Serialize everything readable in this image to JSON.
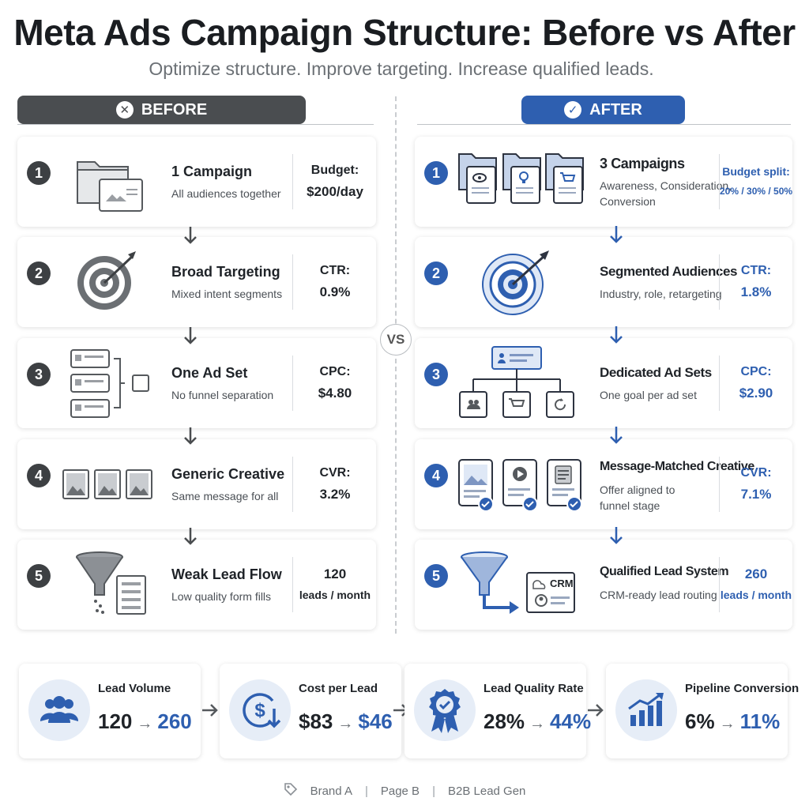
{
  "header": {
    "title": "Meta Ads Campaign Structure: Before vs After",
    "subtitle": "Optimize structure. Improve targeting. Increase qualified leads."
  },
  "before": {
    "label": "BEFORE",
    "cards": [
      {
        "number": "1",
        "title": "1 Campaign",
        "subtitle": [
          "All audiences together"
        ],
        "metric_label": "Budget:",
        "metric_value": "$200/day",
        "icon": "folder-icon"
      },
      {
        "number": "2",
        "title": "Broad Targeting",
        "subtitle": [
          "Mixed intent segments"
        ],
        "metric_label": "CTR:",
        "metric_value": "0.9%",
        "icon": "target-icon"
      },
      {
        "number": "3",
        "title": "One Ad Set",
        "subtitle": [
          "No funnel separation"
        ],
        "metric_label": "CPC:",
        "metric_value": "$4.80",
        "icon": "ad-set-icon"
      },
      {
        "number": "4",
        "title": "Generic Creative",
        "subtitle": [
          "Same message for all"
        ],
        "metric_label": "CVR:",
        "metric_value": "3.2%",
        "icon": "image-icon"
      },
      {
        "number": "5",
        "title": "Weak Lead Flow",
        "subtitle": [
          "Low quality form fills"
        ],
        "metric_label": "120",
        "metric_value": "leads / month",
        "icon": "funnel-icon"
      }
    ]
  },
  "vs": "VS",
  "after": {
    "label": "AFTER",
    "cards": [
      {
        "number": "1",
        "title": "3 Campaigns",
        "subtitle": [
          "Awareness, Consideration,",
          "Conversion"
        ],
        "metric_label": "Budget split:",
        "metric_value": "20% / 30% / 50%",
        "icon": "folders-icon"
      },
      {
        "number": "2",
        "title": "Segmented Audiences",
        "subtitle": [
          "Industry, role, retargeting"
        ],
        "metric_label": "CTR:",
        "metric_value": "1.8%",
        "icon": "target-icon"
      },
      {
        "number": "3",
        "title": "Dedicated Ad Sets",
        "subtitle": [
          "One goal per ad set"
        ],
        "metric_label": "CPC:",
        "metric_value": "$2.90",
        "icon": "hierarchy-icon"
      },
      {
        "number": "4",
        "title": "Message-Matched Creative",
        "subtitle": [
          "Offer aligned to",
          "funnel stage"
        ],
        "metric_label": "CVR:",
        "metric_value": "7.1%",
        "icon": "creative-check-icon"
      },
      {
        "number": "5",
        "title": "Qualified Lead System",
        "subtitle": [
          "CRM-ready lead routing"
        ],
        "metric_label": "260",
        "metric_value": "leads / month",
        "icon": "crm-icon",
        "crm_text": "CRM"
      }
    ]
  },
  "kpis": [
    {
      "label": "Lead Volume",
      "from": "120",
      "to": "260",
      "icon": "people-icon"
    },
    {
      "label": "Cost per Lead",
      "from": "$83",
      "to": "$46",
      "icon": "dollar-down-icon"
    },
    {
      "label": "Lead Quality Rate",
      "from": "28%",
      "to": "44%",
      "icon": "badge-icon"
    },
    {
      "label": "Pipeline Conversion",
      "from": "6%",
      "to": "11%",
      "icon": "growth-chart-icon"
    }
  ],
  "footer": {
    "brand": "Brand A",
    "page": "Page B",
    "topic": "B2B Lead Gen"
  },
  "colors": {
    "before": "#4a4d50",
    "after": "#2e5fb0",
    "after_light": "#e6edf7"
  }
}
